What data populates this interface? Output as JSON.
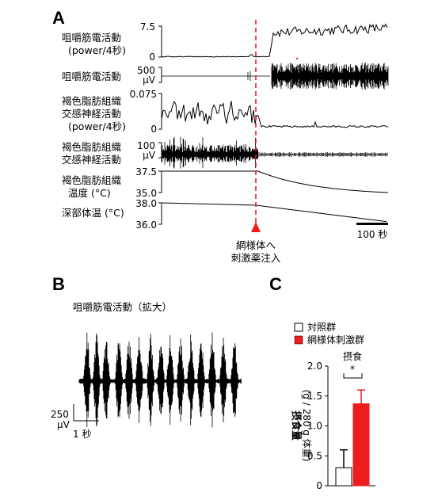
{
  "panel_a": {
    "letter": "A",
    "traces": [
      {
        "label_lines": [
          "咀嚼筋電活動",
          "(power/4秒)"
        ],
        "ticks": [
          "7.5",
          "0"
        ]
      },
      {
        "label_lines": [
          "咀嚼筋電活動"
        ],
        "ticks": [
          "500",
          "μV"
        ]
      },
      {
        "label_lines": [
          "褐色脂肪組織",
          "交感神経活動",
          "(power/4秒)"
        ],
        "ticks": [
          "0.075",
          "0"
        ]
      },
      {
        "label_lines": [
          "褐色脂肪組織",
          "交感神経活動"
        ],
        "ticks": [
          "100",
          "μV"
        ]
      },
      {
        "label_lines": [
          "褐色脂肪組織",
          "温度 (°C)"
        ],
        "ticks": [
          "37.5",
          "35.0"
        ]
      },
      {
        "label_lines": [
          "深部体温 (°C)"
        ],
        "ticks": [
          "38.0",
          "36.0"
        ]
      }
    ],
    "injection_lines": [
      "網様体へ",
      "刺激薬注入"
    ],
    "scalebar": "100 秒"
  },
  "panel_b": {
    "letter": "B",
    "title": "咀嚼筋電活動（拡大）",
    "scale_v_lines": [
      "250",
      "μV"
    ],
    "scale_t": "1 秒"
  },
  "panel_c": {
    "letter": "C",
    "legend": [
      "対照群",
      "網様体刺激群"
    ],
    "title": "摂食",
    "significance": "*",
    "ylabel_lines": [
      "摂食量",
      "(g / 280 g 体重)"
    ],
    "colors": {
      "control": "#ffffff",
      "stimulated": "#ee1c1c",
      "injection": "#ee1c1c"
    },
    "chart_data": {
      "type": "bar",
      "categories": [
        "対照群",
        "網様体刺激群"
      ],
      "series": [
        {
          "values": [
            0.3,
            1.37
          ]
        }
      ],
      "errors": [
        0.3,
        0.23
      ],
      "yticks": [
        "0",
        "0.5",
        "1.0",
        "1.5",
        "2.0"
      ],
      "ylim": [
        0,
        2.0
      ]
    }
  }
}
